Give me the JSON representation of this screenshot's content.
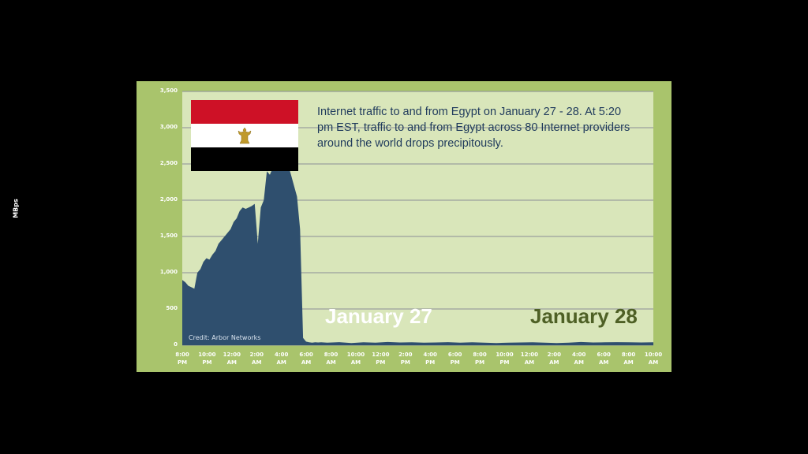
{
  "chart_data": {
    "type": "area",
    "title": "Internet traffic to and from Egypt on January 27 - 28. At 5:20 pm EST, traffic to and from Egypt across 80 Internet providers around the world  drops precipitously.",
    "ylabel": "MBps",
    "xlabel": "",
    "ylim": [
      0,
      3500
    ],
    "yticks": [
      "0",
      "500",
      "1,000",
      "1,500",
      "2,000",
      "2,500",
      "3,000",
      "3,500"
    ],
    "ytick_values": [
      0,
      500,
      1000,
      1500,
      2000,
      2500,
      3000,
      3500
    ],
    "xticks": [
      [
        "8:00",
        "PM"
      ],
      [
        "10:00",
        "PM"
      ],
      [
        "12:00",
        "AM"
      ],
      [
        "2:00",
        "AM"
      ],
      [
        "4:00",
        "AM"
      ],
      [
        "6:00",
        "AM"
      ],
      [
        "8:00",
        "AM"
      ],
      [
        "10:00",
        "AM"
      ],
      [
        "12:00",
        "PM"
      ],
      [
        "2:00",
        "PM"
      ],
      [
        "4:00",
        "PM"
      ],
      [
        "6:00",
        "PM"
      ],
      [
        "8:00",
        "PM"
      ],
      [
        "10:00",
        "PM"
      ],
      [
        "12:00",
        "AM"
      ],
      [
        "2:00",
        "AM"
      ],
      [
        "4:00",
        "AM"
      ],
      [
        "6:00",
        "AM"
      ],
      [
        "8:00",
        "AM"
      ],
      [
        "10:00",
        "AM"
      ]
    ],
    "x_hours": [
      0,
      0.5,
      1,
      1.5,
      2,
      2.5,
      3,
      3.5,
      4,
      4.5,
      5,
      5.5,
      6,
      6.5,
      7,
      7.5,
      8,
      8.5,
      9,
      9.5,
      10,
      10.5,
      11,
      11.5,
      12,
      12.5,
      13,
      13.5,
      14,
      14.5,
      15,
      15.5,
      16,
      16.5,
      17,
      17.5,
      18,
      18.5,
      19,
      19.5,
      20,
      20.5,
      21,
      21.5,
      22,
      22.5,
      23,
      24,
      26,
      28,
      30,
      32,
      34,
      36,
      38,
      40,
      42,
      44,
      46,
      48,
      50,
      52,
      54,
      56,
      58,
      60,
      62,
      64,
      66,
      68,
      70,
      72,
      74,
      76,
      78
    ],
    "values": [
      900,
      870,
      820,
      800,
      780,
      1000,
      1050,
      1150,
      1200,
      1180,
      1250,
      1300,
      1400,
      1450,
      1500,
      1550,
      1600,
      1700,
      1750,
      1850,
      1900,
      1880,
      1900,
      1920,
      1950,
      1400,
      1900,
      2000,
      2400,
      2350,
      2450,
      2450,
      2400,
      2550,
      2650,
      2500,
      2350,
      2200,
      2050,
      1600,
      100,
      50,
      40,
      35,
      40,
      38,
      40,
      35,
      42,
      30,
      40,
      35,
      45,
      38,
      40,
      36,
      38,
      42,
      35,
      40,
      36,
      30,
      35,
      38,
      40,
      35,
      30,
      35,
      45,
      38,
      40,
      42,
      40,
      38,
      40
    ],
    "grid": true,
    "annotations": [
      "January 27",
      "January 28"
    ],
    "credit": "Credit: Arbor Networks",
    "colors": {
      "area": "#2f4f6e",
      "background": "#d9e6ba",
      "frame": "#a9c46c",
      "grid": "#8a8f96"
    }
  },
  "flag": {
    "name": "Egypt",
    "colors": [
      "#ce1126",
      "#ffffff",
      "#000000"
    ],
    "emblem": "eagle-of-saladin-icon"
  }
}
